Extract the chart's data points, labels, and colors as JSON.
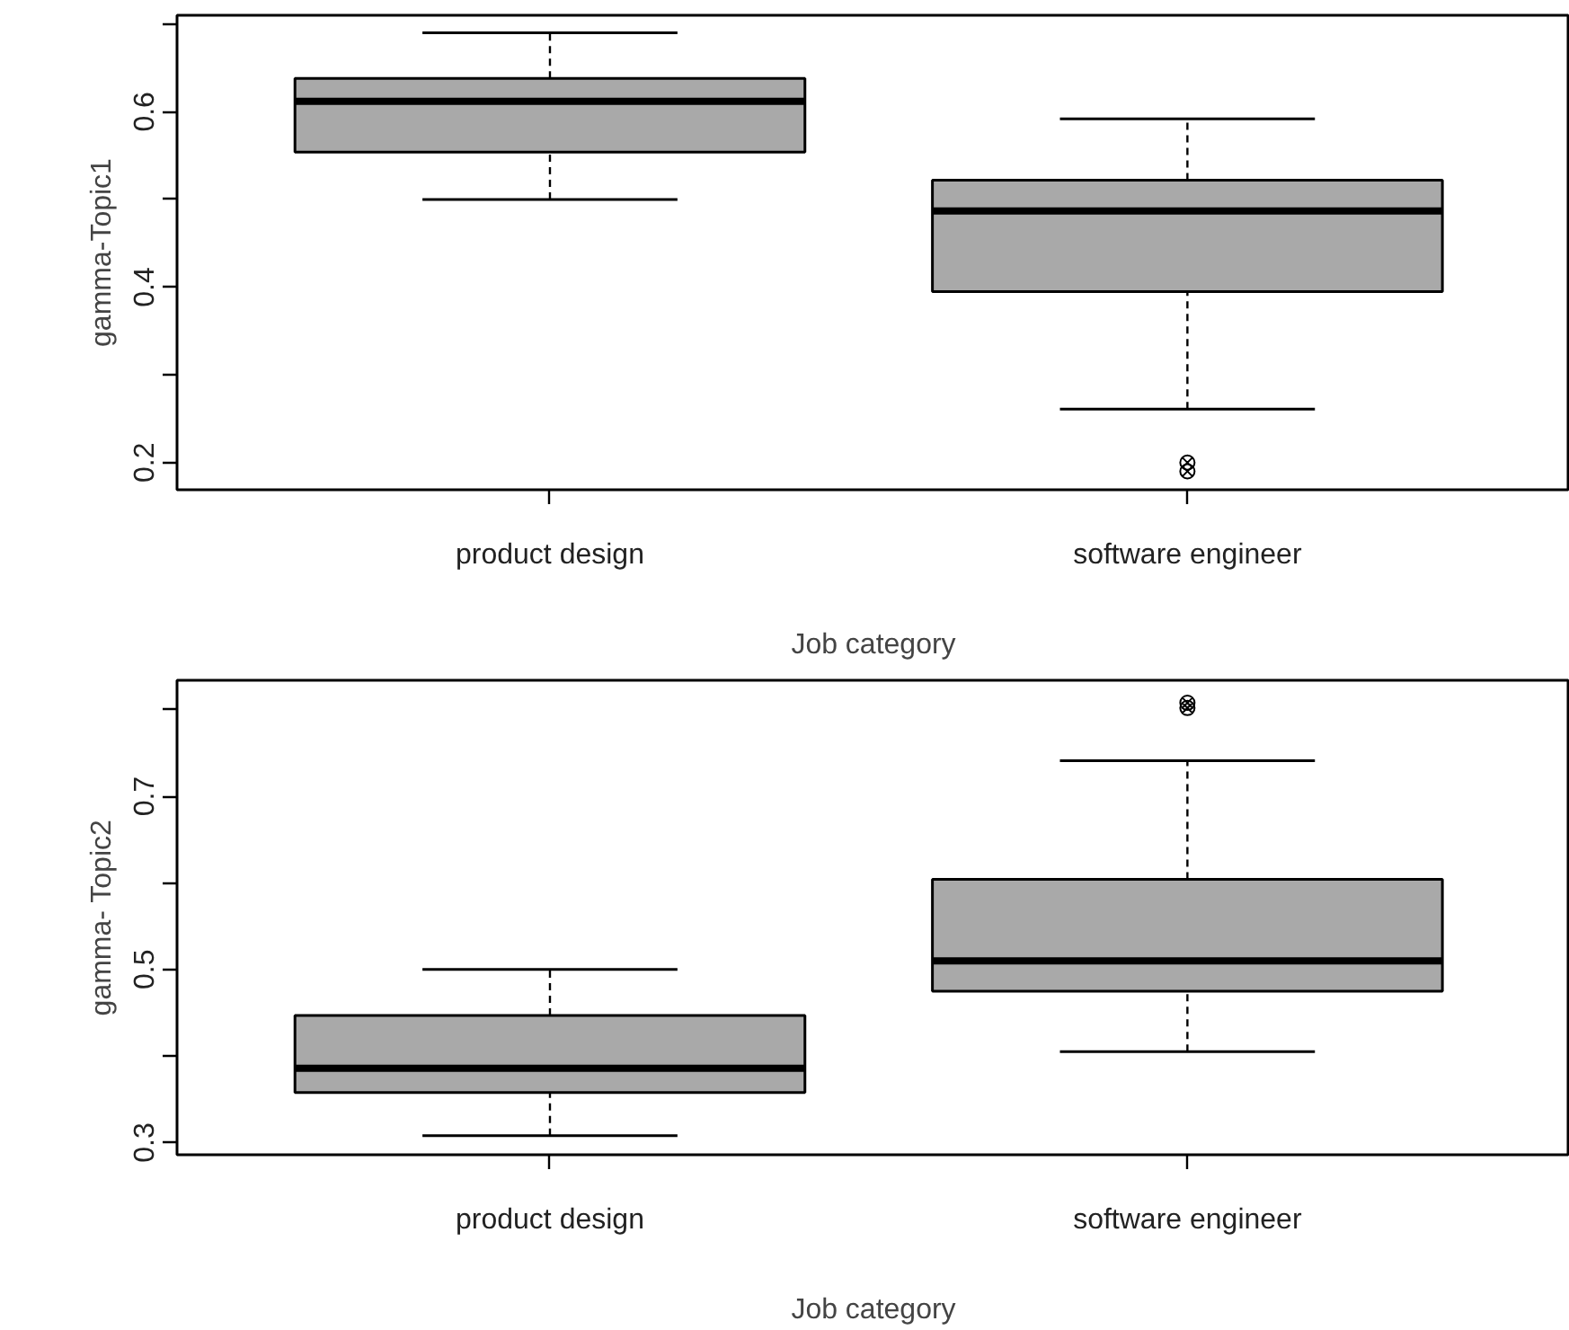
{
  "chart_data": [
    {
      "type": "box",
      "categories": [
        "product design",
        "software engineer"
      ],
      "xlabel": "Job category",
      "ylabel": "gamma-Topic1",
      "ylim": [
        0.169,
        0.71
      ],
      "yticks": [
        0.2,
        {
          "value": 0.3,
          "label": null
        },
        0.4,
        {
          "value": 0.5,
          "label": null
        },
        0.6,
        {
          "value": 0.7,
          "label": null
        }
      ],
      "grid": false,
      "series": [
        {
          "color": "#a9a9a9",
          "boxes": [
            {
              "low": 0.5,
              "q1": 0.554,
              "median": 0.612,
              "q3": 0.638,
              "high": 0.69
            },
            {
              "low": 0.261,
              "q1": 0.395,
              "median": 0.487,
              "q3": 0.522,
              "high": 0.592,
              "outliers": [
                0.2,
                0.19
              ]
            }
          ]
        }
      ]
    },
    {
      "type": "box",
      "categories": [
        "product design",
        "software engineer"
      ],
      "xlabel": "Job category",
      "ylabel": "gamma- Topic2",
      "ylim": [
        0.286,
        0.834
      ],
      "yticks": [
        0.3,
        {
          "value": 0.4,
          "label": null
        },
        0.5,
        {
          "value": 0.6,
          "label": null
        },
        0.7,
        {
          "value": 0.8,
          "label": null
        }
      ],
      "grid": false,
      "series": [
        {
          "color": "#a9a9a9",
          "boxes": [
            {
              "low": 0.308,
              "q1": 0.358,
              "median": 0.386,
              "q3": 0.447,
              "high": 0.5
            },
            {
              "low": 0.405,
              "q1": 0.475,
              "median": 0.51,
              "q3": 0.604,
              "high": 0.741,
              "outliers": [
                0.808,
                0.802
              ]
            }
          ]
        }
      ]
    }
  ]
}
